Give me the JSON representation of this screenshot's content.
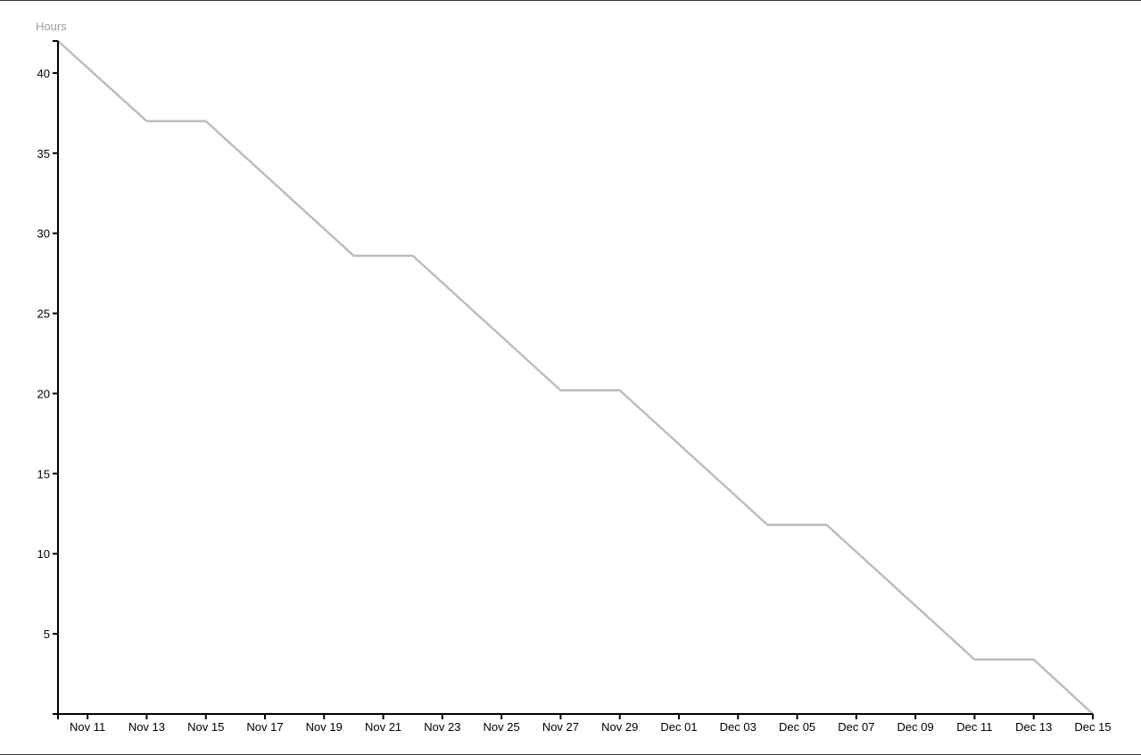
{
  "chart_data": {
    "type": "line",
    "title": "",
    "xlabel": "",
    "ylabel": "Hours",
    "x_ticks": [
      "Nov 11",
      "Nov 13",
      "Nov 15",
      "Nov 17",
      "Nov 19",
      "Nov 21",
      "Nov 23",
      "Nov 25",
      "Nov 27",
      "Nov 29",
      "Dec 01",
      "Dec 03",
      "Dec 05",
      "Dec 07",
      "Dec 09",
      "Dec 11",
      "Dec 13",
      "Dec 15"
    ],
    "y_ticks": [
      5,
      10,
      15,
      20,
      25,
      30,
      35,
      40
    ],
    "xlim": [
      "Nov 10",
      "Dec 15"
    ],
    "ylim": [
      0,
      42
    ],
    "grid": false,
    "line_color": "#bdbdbd",
    "series": [
      {
        "x": [
          "Nov 10",
          "Nov 13",
          "Nov 15",
          "Nov 20",
          "Nov 22",
          "Nov 27",
          "Nov 29",
          "Dec 04",
          "Dec 06",
          "Dec 11",
          "Dec 13",
          "Dec 15"
        ],
        "y": [
          42,
          37,
          37,
          28.6,
          28.6,
          20.2,
          20.2,
          11.8,
          11.8,
          3.4,
          3.4,
          0
        ]
      }
    ]
  }
}
